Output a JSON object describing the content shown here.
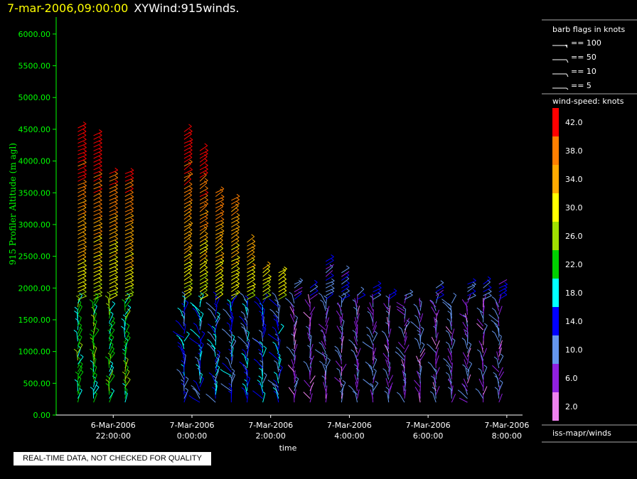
{
  "header": {
    "timestamp": "7-mar-2006,09:00:00",
    "title": "XYWind:915winds."
  },
  "qc_notice": "REAL-TIME DATA, NOT CHECKED FOR QUALITY",
  "barb_legend": {
    "title": "barb flags in knots",
    "items": [
      "== 100",
      "== 50",
      "== 10",
      "== 5"
    ]
  },
  "color_legend": {
    "title": "wind-speed: knots",
    "levels": [
      {
        "label": "42.0",
        "color": "#ff0000"
      },
      {
        "label": "38.0",
        "color": "#ff7f00"
      },
      {
        "label": "34.0",
        "color": "#ffaa00"
      },
      {
        "label": "30.0",
        "color": "#ffff00"
      },
      {
        "label": "26.0",
        "color": "#a0e000"
      },
      {
        "label": "22.0",
        "color": "#00d000"
      },
      {
        "label": "18.0",
        "color": "#00ffff"
      },
      {
        "label": "14.0",
        "color": "#0000ff"
      },
      {
        "label": "10.0",
        "color": "#6495ed"
      },
      {
        "label": "6.0",
        "color": "#9020e0"
      },
      {
        "label": "2.0",
        "color": "#ee82ee"
      }
    ],
    "source": "iss-mapr/winds"
  },
  "chart_data": {
    "type": "scatter",
    "xlabel": "time",
    "ylabel": "915 Profiler Altitude (m agl)",
    "ylim": [
      0,
      6200
    ],
    "y_ticks": [
      "0.00",
      "500.00",
      "1000.00",
      "1500.00",
      "2000.00",
      "2500.00",
      "3000.00",
      "3500.00",
      "4000.00",
      "4500.00",
      "5000.00",
      "5500.00",
      "6000.00"
    ],
    "x_ticks": [
      {
        "date": "6-Mar-2006",
        "time": "22:00:00"
      },
      {
        "date": "7-Mar-2006",
        "time": "0:00:00"
      },
      {
        "date": "7-Mar-2006",
        "time": "2:00:00"
      },
      {
        "date": "7-Mar-2006",
        "time": "4:00:00"
      },
      {
        "date": "7-Mar-2006",
        "time": "6:00:00"
      },
      {
        "date": "7-Mar-2006",
        "time": "8:00:00"
      }
    ],
    "axis_color": "#00ff00",
    "profiles": [
      {
        "time_h": 21.1,
        "top": 4550
      },
      {
        "time_h": 21.5,
        "top": 4450
      },
      {
        "time_h": 21.9,
        "top": 3850
      },
      {
        "time_h": 22.3,
        "top": 3850
      },
      {
        "time_h": 23.8,
        "top": 4500
      },
      {
        "time_h": 24.2,
        "top": 4200
      },
      {
        "time_h": 24.6,
        "top": 3550
      },
      {
        "time_h": 25.0,
        "top": 3400
      },
      {
        "time_h": 25.4,
        "top": 2750
      },
      {
        "time_h": 25.8,
        "top": 2350
      },
      {
        "time_h": 26.2,
        "top": 2250
      },
      {
        "time_h": 26.6,
        "top": 2100
      },
      {
        "time_h": 27.0,
        "top": 2000
      },
      {
        "time_h": 27.4,
        "top": 2450
      },
      {
        "time_h": 27.8,
        "top": 2250
      },
      {
        "time_h": 28.2,
        "top": 1900
      },
      {
        "time_h": 28.6,
        "top": 2050
      },
      {
        "time_h": 29.0,
        "top": 1900
      },
      {
        "time_h": 29.4,
        "top": 1900
      },
      {
        "time_h": 29.8,
        "top": 1700
      },
      {
        "time_h": 30.2,
        "top": 2000
      },
      {
        "time_h": 30.6,
        "top": 1800
      },
      {
        "time_h": 31.0,
        "top": 2100
      },
      {
        "time_h": 31.4,
        "top": 2100
      },
      {
        "time_h": 31.8,
        "top": 2100
      }
    ]
  }
}
